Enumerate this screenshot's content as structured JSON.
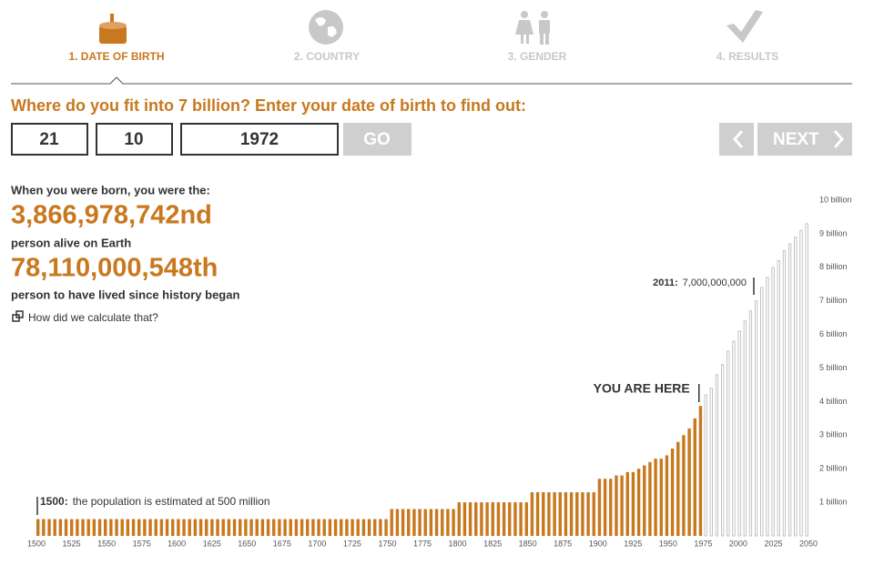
{
  "steps": [
    {
      "label": "1. DATE OF BIRTH"
    },
    {
      "label": "2. COUNTRY"
    },
    {
      "label": "3. GENDER"
    },
    {
      "label": "4. RESULTS"
    }
  ],
  "question": "Where do you fit into 7 billion? Enter your date of birth to find out:",
  "inputs": {
    "day": "21",
    "month": "10",
    "year": "1972"
  },
  "buttons": {
    "go": "GO",
    "next": "NEXT"
  },
  "result": {
    "intro": "When you were born, you were the:",
    "alive_rank": "3,866,978,742nd",
    "alive_caption": "person alive on Earth",
    "lived_rank": "78,110,000,548th",
    "lived_caption": "person to have lived since history began",
    "link": "How did we calculate that?"
  },
  "chart_data": {
    "type": "bar",
    "x": [
      1500,
      1504,
      1508,
      1512,
      1516,
      1520,
      1524,
      1528,
      1532,
      1536,
      1540,
      1544,
      1548,
      1552,
      1556,
      1560,
      1564,
      1568,
      1572,
      1576,
      1580,
      1584,
      1588,
      1592,
      1596,
      1600,
      1604,
      1608,
      1612,
      1616,
      1620,
      1624,
      1628,
      1632,
      1636,
      1640,
      1644,
      1648,
      1652,
      1656,
      1660,
      1664,
      1668,
      1672,
      1676,
      1680,
      1684,
      1688,
      1692,
      1696,
      1700,
      1704,
      1708,
      1712,
      1716,
      1720,
      1724,
      1728,
      1732,
      1736,
      1740,
      1744,
      1748,
      1752,
      1756,
      1760,
      1764,
      1768,
      1772,
      1776,
      1780,
      1784,
      1788,
      1792,
      1796,
      1800,
      1804,
      1808,
      1812,
      1816,
      1820,
      1824,
      1828,
      1832,
      1836,
      1840,
      1844,
      1848,
      1852,
      1856,
      1860,
      1864,
      1868,
      1872,
      1876,
      1880,
      1884,
      1888,
      1892,
      1896,
      1900,
      1904,
      1908,
      1912,
      1916,
      1920,
      1924,
      1928,
      1932,
      1936,
      1940,
      1944,
      1948,
      1952,
      1956,
      1960,
      1964,
      1968,
      1972,
      1976,
      1980,
      1984,
      1988,
      1992,
      1996,
      2000,
      2004,
      2008,
      2012,
      2016,
      2020,
      2024,
      2028,
      2032,
      2036,
      2040,
      2044,
      2048
    ],
    "values": [
      0.5,
      0.5,
      0.5,
      0.5,
      0.5,
      0.5,
      0.5,
      0.5,
      0.5,
      0.5,
      0.5,
      0.5,
      0.5,
      0.5,
      0.5,
      0.5,
      0.5,
      0.5,
      0.5,
      0.5,
      0.5,
      0.5,
      0.5,
      0.5,
      0.5,
      0.5,
      0.5,
      0.5,
      0.5,
      0.5,
      0.5,
      0.5,
      0.5,
      0.5,
      0.5,
      0.5,
      0.5,
      0.5,
      0.5,
      0.5,
      0.5,
      0.5,
      0.5,
      0.5,
      0.5,
      0.5,
      0.5,
      0.5,
      0.5,
      0.5,
      0.5,
      0.5,
      0.5,
      0.5,
      0.5,
      0.5,
      0.5,
      0.5,
      0.5,
      0.5,
      0.5,
      0.5,
      0.5,
      0.8,
      0.8,
      0.8,
      0.8,
      0.8,
      0.8,
      0.8,
      0.8,
      0.8,
      0.8,
      0.8,
      0.8,
      1.0,
      1.0,
      1.0,
      1.0,
      1.0,
      1.0,
      1.0,
      1.0,
      1.0,
      1.0,
      1.0,
      1.0,
      1.0,
      1.3,
      1.3,
      1.3,
      1.3,
      1.3,
      1.3,
      1.3,
      1.3,
      1.3,
      1.3,
      1.3,
      1.3,
      1.7,
      1.7,
      1.7,
      1.8,
      1.8,
      1.9,
      1.9,
      2.0,
      2.1,
      2.2,
      2.3,
      2.3,
      2.4,
      2.6,
      2.8,
      3.0,
      3.2,
      3.5,
      3.87,
      4.2,
      4.4,
      4.8,
      5.1,
      5.5,
      5.8,
      6.1,
      6.4,
      6.7,
      7.0,
      7.4,
      7.7,
      8.0,
      8.2,
      8.5,
      8.7,
      8.9,
      9.1,
      9.3
    ],
    "color": "#c8781e",
    "future_color": "#ffffff",
    "future_stroke": "#b5b5b5",
    "xlim": [
      1500,
      2050
    ],
    "xticks": [
      1500,
      1525,
      1550,
      1575,
      1600,
      1625,
      1650,
      1675,
      1700,
      1725,
      1750,
      1775,
      1800,
      1825,
      1850,
      1875,
      1900,
      1925,
      1950,
      1975,
      2000,
      2025,
      2050
    ],
    "ylim": [
      0,
      10
    ],
    "yticks": [
      {
        "value": 1,
        "label": "1 billion"
      },
      {
        "value": 2,
        "label": "2 billion"
      },
      {
        "value": 3,
        "label": "3 billion"
      },
      {
        "value": 4,
        "label": "4 billion"
      },
      {
        "value": 5,
        "label": "5 billion"
      },
      {
        "value": 6,
        "label": "6 billion"
      },
      {
        "value": 7,
        "label": "7 billion"
      },
      {
        "value": 8,
        "label": "8 billion"
      },
      {
        "value": 9,
        "label": "9 billion"
      },
      {
        "value": 10,
        "label": "10 billion"
      }
    ],
    "annotations": [
      {
        "label": "1500:",
        "text": "the population is estimated at 500 million"
      },
      {
        "label": "2011:",
        "text": "7,000,000,000"
      },
      {
        "text": "YOU ARE HERE"
      }
    ]
  }
}
